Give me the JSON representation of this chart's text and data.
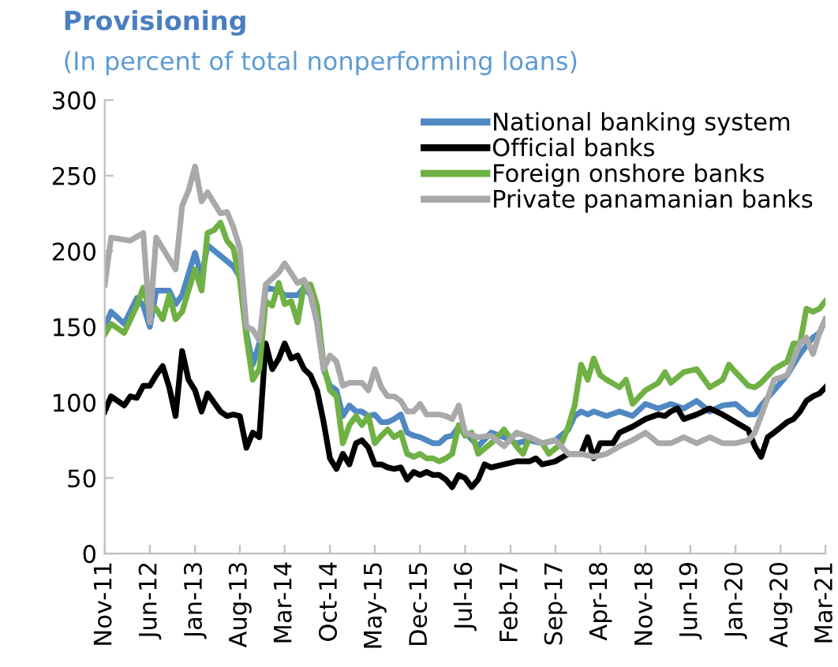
{
  "chart_data": {
    "type": "line",
    "title": "Provisioning",
    "subtitle": "(In percent of total nonperforming loans)",
    "xlim": [
      "2011-11",
      "2021-03"
    ],
    "xticks": [
      {
        "value": "2011-11",
        "label": "Nov-11"
      },
      {
        "value": "2012-06",
        "label": "Jun-12"
      },
      {
        "value": "2013-01",
        "label": "Jan-13"
      },
      {
        "value": "2013-08",
        "label": "Aug-13"
      },
      {
        "value": "2014-03",
        "label": "Mar-14"
      },
      {
        "value": "2014-10",
        "label": "Oct-14"
      },
      {
        "value": "2015-05",
        "label": "May-15"
      },
      {
        "value": "2015-12",
        "label": "Dec-15"
      },
      {
        "value": "2016-07",
        "label": "Jul-16"
      },
      {
        "value": "2017-02",
        "label": "Feb-17"
      },
      {
        "value": "2017-09",
        "label": "Sep-17"
      },
      {
        "value": "2018-04",
        "label": "Apr-18"
      },
      {
        "value": "2018-11",
        "label": "Nov-18"
      },
      {
        "value": "2019-06",
        "label": "Jun-19"
      },
      {
        "value": "2020-01",
        "label": "Jan-20"
      },
      {
        "value": "2020-08",
        "label": "Aug-20"
      },
      {
        "value": "2021-03",
        "label": "Mar-21"
      }
    ],
    "ylim": [
      0,
      300
    ],
    "yticks": [
      0,
      50,
      100,
      150,
      200,
      250,
      300
    ],
    "grid": false,
    "legend": "top right",
    "marker": "none",
    "line_style": "solid",
    "series": [
      {
        "name": "National banking system",
        "color": "#4f88c2",
        "x": [
          "2011-11",
          "2011-12",
          "2012-02",
          "2012-04",
          "2012-05",
          "2012-06",
          "2012-07",
          "2012-09",
          "2012-10",
          "2012-11",
          "2012-12",
          "2013-01",
          "2013-02",
          "2013-03",
          "2013-05",
          "2013-07",
          "2013-08",
          "2013-09",
          "2013-10",
          "2013-11",
          "2013-12",
          "2014-02",
          "2014-03",
          "2014-05",
          "2014-06",
          "2014-07",
          "2014-08",
          "2014-09",
          "2014-10",
          "2014-11",
          "2014-12",
          "2015-01",
          "2015-02",
          "2015-03",
          "2015-04",
          "2015-05",
          "2015-06",
          "2015-07",
          "2015-08",
          "2015-09",
          "2015-10",
          "2015-11",
          "2015-12",
          "2016-01",
          "2016-02",
          "2016-03",
          "2016-04",
          "2016-05",
          "2016-06",
          "2016-07",
          "2016-09",
          "2016-11",
          "2017-01",
          "2017-03",
          "2017-05",
          "2017-07",
          "2017-09",
          "2017-11",
          "2017-12",
          "2018-01",
          "2018-02",
          "2018-03",
          "2018-05",
          "2018-07",
          "2018-09",
          "2018-11",
          "2019-01",
          "2019-03",
          "2019-05",
          "2019-07",
          "2019-09",
          "2019-11",
          "2020-01",
          "2020-03",
          "2020-04",
          "2020-05",
          "2020-07",
          "2020-09",
          "2020-10",
          "2020-11",
          "2021-01",
          "2021-02",
          "2021-03"
        ],
        "values": [
          150,
          160,
          152,
          169,
          164,
          150,
          174,
          174,
          165,
          171,
          185,
          199,
          183,
          204,
          197,
          190,
          183,
          146,
          125,
          139,
          176,
          174,
          171,
          171,
          176,
          171,
          153,
          122,
          111,
          108,
          91,
          98,
          94,
          94,
          91,
          92,
          87,
          87,
          89,
          92,
          80,
          78,
          77,
          75,
          73,
          73,
          77,
          78,
          84,
          80,
          71,
          80,
          77,
          73,
          75,
          73,
          75,
          82,
          91,
          94,
          92,
          94,
          91,
          94,
          91,
          99,
          96,
          99,
          96,
          101,
          94,
          98,
          99,
          92,
          92,
          98,
          108,
          118,
          125,
          132,
          143,
          146,
          155
        ]
      },
      {
        "name": "Official banks",
        "color": "#000000",
        "x": [
          "2011-11",
          "2011-12",
          "2012-02",
          "2012-03",
          "2012-04",
          "2012-05",
          "2012-06",
          "2012-07",
          "2012-08",
          "2012-09",
          "2012-10",
          "2012-11",
          "2012-12",
          "2013-01",
          "2013-02",
          "2013-03",
          "2013-05",
          "2013-06",
          "2013-07",
          "2013-08",
          "2013-09",
          "2013-10",
          "2013-11",
          "2013-12",
          "2014-01",
          "2014-02",
          "2014-03",
          "2014-04",
          "2014-05",
          "2014-06",
          "2014-07",
          "2014-08",
          "2014-09",
          "2014-10",
          "2014-11",
          "2014-12",
          "2015-01",
          "2015-02",
          "2015-03",
          "2015-04",
          "2015-05",
          "2015-06",
          "2015-07",
          "2015-08",
          "2015-09",
          "2015-10",
          "2015-11",
          "2015-12",
          "2016-01",
          "2016-02",
          "2016-03",
          "2016-04",
          "2016-05",
          "2016-06",
          "2016-07",
          "2016-08",
          "2016-09",
          "2016-10",
          "2016-11",
          "2017-01",
          "2017-03",
          "2017-05",
          "2017-06",
          "2017-07",
          "2017-09",
          "2017-11",
          "2018-01",
          "2018-02",
          "2018-03",
          "2018-04",
          "2018-06",
          "2018-07",
          "2018-09",
          "2018-11",
          "2019-01",
          "2019-02",
          "2019-03",
          "2019-04",
          "2019-05",
          "2019-07",
          "2019-09",
          "2019-11",
          "2020-01",
          "2020-03",
          "2020-04",
          "2020-05",
          "2020-06",
          "2020-07",
          "2020-09",
          "2020-10",
          "2020-11",
          "2020-12",
          "2021-01",
          "2021-02",
          "2021-03"
        ],
        "values": [
          94,
          104,
          98,
          104,
          103,
          111,
          111,
          118,
          124,
          110,
          91,
          134,
          115,
          108,
          94,
          106,
          94,
          91,
          92,
          91,
          70,
          80,
          77,
          139,
          122,
          129,
          139,
          129,
          131,
          122,
          118,
          108,
          87,
          63,
          56,
          66,
          59,
          73,
          75,
          70,
          59,
          59,
          57,
          56,
          57,
          49,
          54,
          52,
          54,
          52,
          52,
          49,
          44,
          52,
          50,
          44,
          49,
          59,
          57,
          59,
          61,
          61,
          63,
          59,
          61,
          66,
          66,
          77,
          63,
          73,
          73,
          80,
          84,
          89,
          92,
          91,
          94,
          96,
          89,
          92,
          96,
          92,
          87,
          82,
          71,
          64,
          77,
          80,
          87,
          89,
          94,
          101,
          104,
          106,
          110
        ]
      },
      {
        "name": "Foreign onshore banks",
        "color": "#6fb144",
        "x": [
          "2011-11",
          "2011-12",
          "2012-02",
          "2012-04",
          "2012-05",
          "2012-06",
          "2012-07",
          "2012-08",
          "2012-09",
          "2012-10",
          "2012-11",
          "2012-12",
          "2013-01",
          "2013-02",
          "2013-03",
          "2013-04",
          "2013-05",
          "2013-06",
          "2013-07",
          "2013-08",
          "2013-09",
          "2013-10",
          "2013-11",
          "2013-12",
          "2014-01",
          "2014-02",
          "2014-03",
          "2014-04",
          "2014-05",
          "2014-06",
          "2014-07",
          "2014-08",
          "2014-09",
          "2014-10",
          "2014-11",
          "2014-12",
          "2015-01",
          "2015-02",
          "2015-03",
          "2015-04",
          "2015-05",
          "2015-06",
          "2015-07",
          "2015-08",
          "2015-09",
          "2015-10",
          "2015-11",
          "2015-12",
          "2016-01",
          "2016-02",
          "2016-03",
          "2016-04",
          "2016-05",
          "2016-06",
          "2016-07",
          "2016-08",
          "2016-09",
          "2016-11",
          "2017-01",
          "2017-03",
          "2017-04",
          "2017-05",
          "2017-07",
          "2017-08",
          "2017-10",
          "2017-11",
          "2017-12",
          "2018-01",
          "2018-02",
          "2018-03",
          "2018-04",
          "2018-05",
          "2018-07",
          "2018-08",
          "2018-09",
          "2018-11",
          "2019-01",
          "2019-02",
          "2019-03",
          "2019-05",
          "2019-07",
          "2019-09",
          "2019-11",
          "2019-12",
          "2020-01",
          "2020-03",
          "2020-04",
          "2020-05",
          "2020-07",
          "2020-09",
          "2020-10",
          "2020-11",
          "2020-12",
          "2021-01",
          "2021-02",
          "2021-03"
        ],
        "values": [
          145,
          152,
          146,
          164,
          176,
          160,
          162,
          155,
          171,
          155,
          160,
          174,
          188,
          174,
          212,
          214,
          219,
          207,
          202,
          181,
          143,
          115,
          122,
          167,
          164,
          179,
          165,
          167,
          153,
          178,
          178,
          164,
          125,
          108,
          104,
          73,
          85,
          91,
          85,
          91,
          73,
          78,
          82,
          77,
          80,
          66,
          64,
          66,
          63,
          63,
          61,
          63,
          66,
          85,
          78,
          80,
          66,
          73,
          82,
          71,
          66,
          77,
          73,
          66,
          73,
          84,
          98,
          125,
          115,
          129,
          118,
          115,
          110,
          115,
          99,
          108,
          113,
          120,
          113,
          120,
          122,
          110,
          115,
          125,
          120,
          111,
          110,
          113,
          122,
          127,
          139,
          139,
          162,
          160,
          162,
          167
        ]
      },
      {
        "name": "Private panamanian banks",
        "color": "#a9a9a9",
        "x": [
          "2011-11",
          "2011-12",
          "2012-03",
          "2012-05",
          "2012-06",
          "2012-07",
          "2012-08",
          "2012-10",
          "2012-11",
          "2012-12",
          "2013-01",
          "2013-02",
          "2013-03",
          "2013-05",
          "2013-06",
          "2013-07",
          "2013-08",
          "2013-09",
          "2013-10",
          "2013-11",
          "2013-12",
          "2014-02",
          "2014-03",
          "2014-05",
          "2014-06",
          "2014-07",
          "2014-08",
          "2014-09",
          "2014-10",
          "2014-11",
          "2014-12",
          "2015-01",
          "2015-03",
          "2015-04",
          "2015-05",
          "2015-06",
          "2015-07",
          "2015-08",
          "2015-09",
          "2015-10",
          "2015-11",
          "2015-12",
          "2016-01",
          "2016-03",
          "2016-04",
          "2016-05",
          "2016-06",
          "2016-07",
          "2016-09",
          "2016-11",
          "2017-01",
          "2017-03",
          "2017-05",
          "2017-07",
          "2017-09",
          "2017-11",
          "2018-01",
          "2018-03",
          "2018-05",
          "2018-07",
          "2018-09",
          "2018-11",
          "2019-01",
          "2019-03",
          "2019-05",
          "2019-07",
          "2019-09",
          "2019-11",
          "2020-01",
          "2020-03",
          "2020-04",
          "2020-06",
          "2020-07",
          "2020-09",
          "2020-11",
          "2020-12",
          "2021-01",
          "2021-02",
          "2021-03"
        ],
        "values": [
          178,
          209,
          207,
          212,
          153,
          209,
          202,
          188,
          230,
          240,
          256,
          233,
          239,
          225,
          226,
          216,
          202,
          150,
          148,
          141,
          178,
          186,
          192,
          179,
          181,
          172,
          153,
          122,
          131,
          127,
          111,
          113,
          113,
          108,
          122,
          110,
          104,
          104,
          101,
          94,
          94,
          99,
          92,
          92,
          91,
          89,
          98,
          80,
          77,
          78,
          71,
          80,
          77,
          73,
          75,
          66,
          66,
          64,
          66,
          71,
          75,
          80,
          73,
          73,
          77,
          73,
          77,
          73,
          73,
          75,
          80,
          103,
          115,
          118,
          139,
          143,
          132,
          146,
          155
        ]
      }
    ]
  }
}
